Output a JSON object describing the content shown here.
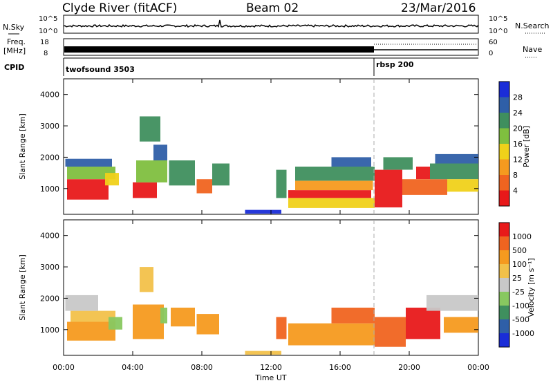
{
  "header": {
    "station": "Clyde River (fitACF)",
    "beam": "Beam 02",
    "date": "23/Mar/2016"
  },
  "top_strips": {
    "nsky": {
      "label": "N.Sky",
      "ticks": [
        "10^5",
        "10^0"
      ]
    },
    "nsearch": {
      "label": "N.Search",
      "ticks": [
        "10^5",
        "10^0"
      ]
    },
    "freq": {
      "label_top": "Freq.",
      "label_unit": "[MHz]",
      "ticks": [
        "18",
        "8"
      ]
    },
    "nave": {
      "label": "Nave",
      "ticks": [
        "60",
        "0"
      ]
    },
    "cpid": {
      "label": "CPID",
      "segments": [
        {
          "name": "twofsound 3503",
          "start_hour": 0,
          "end_hour": 18
        },
        {
          "name": "rbsp 200",
          "start_hour": 18,
          "end_hour": 24
        }
      ]
    }
  },
  "colors": {
    "power_scale": [
      "#1a2dd8",
      "#2f5fa8",
      "#3f8f5e",
      "#7fbf3f",
      "#f0d11a",
      "#f59a1f",
      "#f06420",
      "#e8191a"
    ],
    "velocity_scale": [
      "#e8191a",
      "#f06420",
      "#f59a1f",
      "#f2c14a",
      "#c8c8c8",
      "#88c860",
      "#3f8f5e",
      "#2f5fa8",
      "#1a2dd8"
    ]
  },
  "chart_data": [
    {
      "type": "heatmap",
      "title": "Power",
      "xlabel": "",
      "ylabel": "Slant Range [km]",
      "xlim": [
        0,
        24
      ],
      "ylim": [
        180,
        4500
      ],
      "xticks": [
        "00:00",
        "04:00",
        "08:00",
        "12:00",
        "16:00",
        "20:00",
        "00:00"
      ],
      "yticks": [
        1000,
        2000,
        3000,
        4000
      ],
      "colorbar": {
        "label": "Power [dB]",
        "ticks": [
          "4",
          "8",
          "12",
          "16",
          "20",
          "24",
          "28"
        ]
      },
      "patches": [
        {
          "t0": 0.2,
          "t1": 2.6,
          "r0": 650,
          "r1": 1300,
          "level": 7
        },
        {
          "t0": 0.2,
          "t1": 3.0,
          "r0": 1300,
          "r1": 1700,
          "level": 3
        },
        {
          "t0": 0.1,
          "t1": 2.8,
          "r0": 1700,
          "r1": 1950,
          "level": 1
        },
        {
          "t0": 2.4,
          "t1": 3.2,
          "r0": 1100,
          "r1": 1500,
          "level": 4
        },
        {
          "t0": 4.0,
          "t1": 5.4,
          "r0": 700,
          "r1": 1200,
          "level": 7
        },
        {
          "t0": 4.2,
          "t1": 6.0,
          "r0": 1200,
          "r1": 1900,
          "level": 3
        },
        {
          "t0": 4.4,
          "t1": 5.6,
          "r0": 2500,
          "r1": 3300,
          "level": 2
        },
        {
          "t0": 5.2,
          "t1": 6.0,
          "r0": 1900,
          "r1": 2400,
          "level": 1
        },
        {
          "t0": 6.1,
          "t1": 7.6,
          "r0": 1100,
          "r1": 1900,
          "level": 2
        },
        {
          "t0": 7.7,
          "t1": 8.6,
          "r0": 850,
          "r1": 1300,
          "level": 6
        },
        {
          "t0": 8.6,
          "t1": 9.6,
          "r0": 1100,
          "r1": 1800,
          "level": 2
        },
        {
          "t0": 10.5,
          "t1": 12.6,
          "r0": 200,
          "r1": 320,
          "level": 0
        },
        {
          "t0": 12.3,
          "t1": 12.9,
          "r0": 700,
          "r1": 1600,
          "level": 2
        },
        {
          "t0": 13.0,
          "t1": 17.8,
          "r0": 700,
          "r1": 950,
          "level": 7
        },
        {
          "t0": 13.0,
          "t1": 18.0,
          "r0": 380,
          "r1": 700,
          "level": 4
        },
        {
          "t0": 13.4,
          "t1": 17.9,
          "r0": 950,
          "r1": 1250,
          "level": 5
        },
        {
          "t0": 13.4,
          "t1": 18.0,
          "r0": 1250,
          "r1": 1700,
          "level": 2
        },
        {
          "t0": 15.5,
          "t1": 17.8,
          "r0": 1700,
          "r1": 2000,
          "level": 1
        },
        {
          "t0": 18.0,
          "t1": 19.6,
          "r0": 400,
          "r1": 1600,
          "level": 7
        },
        {
          "t0": 18.5,
          "t1": 20.2,
          "r0": 1600,
          "r1": 2000,
          "level": 2
        },
        {
          "t0": 19.6,
          "t1": 22.2,
          "r0": 800,
          "r1": 1300,
          "level": 6
        },
        {
          "t0": 20.4,
          "t1": 21.2,
          "r0": 1300,
          "r1": 1700,
          "level": 7
        },
        {
          "t0": 21.2,
          "t1": 24.0,
          "r0": 1300,
          "r1": 1800,
          "level": 2
        },
        {
          "t0": 21.5,
          "t1": 24.0,
          "r0": 1800,
          "r1": 2100,
          "level": 1
        },
        {
          "t0": 22.2,
          "t1": 24.0,
          "r0": 900,
          "r1": 1300,
          "level": 4
        }
      ]
    },
    {
      "type": "heatmap",
      "title": "Velocity",
      "xlabel": "Time UT",
      "ylabel": "Slant Range [km]",
      "xlim": [
        0,
        24
      ],
      "ylim": [
        180,
        4500
      ],
      "xticks": [
        "00:00",
        "04:00",
        "08:00",
        "12:00",
        "16:00",
        "20:00",
        "00:00"
      ],
      "yticks": [
        1000,
        2000,
        3000,
        4000
      ],
      "colorbar": {
        "label": "Velocity [m s⁻¹]",
        "ticks": [
          "1000",
          "500",
          "100",
          "25",
          "-25",
          "-100",
          "-500",
          "-1000"
        ]
      },
      "patches": [
        {
          "t0": 0.2,
          "t1": 3.0,
          "r0": 650,
          "r1": 1250,
          "level": 2
        },
        {
          "t0": 0.4,
          "t1": 3.0,
          "r0": 1250,
          "r1": 1600,
          "level": 3
        },
        {
          "t0": 0.1,
          "t1": 2.0,
          "r0": 1600,
          "r1": 2100,
          "level": 4
        },
        {
          "t0": 2.6,
          "t1": 3.4,
          "r0": 1000,
          "r1": 1400,
          "level": 5
        },
        {
          "t0": 4.0,
          "t1": 5.8,
          "r0": 700,
          "r1": 1800,
          "level": 2
        },
        {
          "t0": 4.4,
          "t1": 5.2,
          "r0": 2200,
          "r1": 3000,
          "level": 3
        },
        {
          "t0": 5.6,
          "t1": 6.0,
          "r0": 1200,
          "r1": 1700,
          "level": 5
        },
        {
          "t0": 6.2,
          "t1": 7.6,
          "r0": 1100,
          "r1": 1700,
          "level": 2
        },
        {
          "t0": 7.7,
          "t1": 9.0,
          "r0": 850,
          "r1": 1500,
          "level": 2
        },
        {
          "t0": 12.3,
          "t1": 12.9,
          "r0": 700,
          "r1": 1400,
          "level": 1
        },
        {
          "t0": 13.0,
          "t1": 18.0,
          "r0": 500,
          "r1": 1200,
          "level": 2
        },
        {
          "t0": 15.5,
          "t1": 18.0,
          "r0": 1200,
          "r1": 1700,
          "level": 1
        },
        {
          "t0": 18.0,
          "t1": 19.8,
          "r0": 450,
          "r1": 1400,
          "level": 1
        },
        {
          "t0": 19.8,
          "t1": 21.8,
          "r0": 700,
          "r1": 1700,
          "level": 0
        },
        {
          "t0": 21.0,
          "t1": 24.0,
          "r0": 1600,
          "r1": 2100,
          "level": 4
        },
        {
          "t0": 22.0,
          "t1": 24.0,
          "r0": 900,
          "r1": 1400,
          "level": 2
        },
        {
          "t0": 10.5,
          "t1": 12.6,
          "r0": 200,
          "r1": 320,
          "level": 3
        }
      ]
    }
  ]
}
